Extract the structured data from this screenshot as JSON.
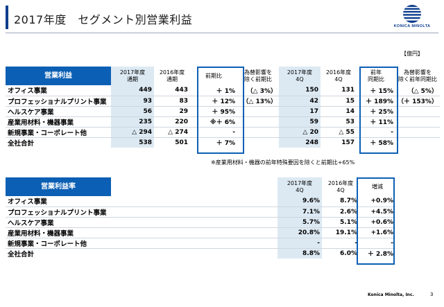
{
  "header": {
    "title": "2017年度　セグメント別営業利益",
    "logo_text": "KONICA MINOLTA",
    "brand_color": "#0b3c8c",
    "accent_color": "#0b5fb4"
  },
  "unit_label": "【億円】",
  "profit_table": {
    "title": "営業利益",
    "headers": {
      "y17": "2017年度\n通期",
      "y16": "2016年度\n通期",
      "yoy": "前期比",
      "fx": "為替影響を\n除く前期比",
      "q17": "2017年度\n4Q",
      "q16": "2016年度\n4Q",
      "qyoy": "前年\n同期比",
      "qfx": "為替影響を\n除く前年同期比"
    },
    "rows": [
      {
        "label": "オフィス事業",
        "y17": "449",
        "y16": "443",
        "yoy": "＋ 1%",
        "fx": "（△ 3%）",
        "q17": "150",
        "q16": "131",
        "qyoy": "＋ 15%",
        "qfx": "（△ 5%）"
      },
      {
        "label": "プロフェッショナルプリント事業",
        "y17": "93",
        "y16": "83",
        "yoy": "＋ 12%",
        "fx": "（△ 13%）",
        "q17": "42",
        "q16": "15",
        "qyoy": "＋ 189%",
        "qfx": "（＋ 153%）"
      },
      {
        "label": "ヘルスケア事業",
        "y17": "56",
        "y16": "29",
        "yoy": "＋ 95%",
        "fx": "",
        "q17": "17",
        "q16": "14",
        "qyoy": "＋ 25%",
        "qfx": ""
      },
      {
        "label": "産業用材料・機器事業",
        "y17": "235",
        "y16": "220",
        "yoy": "※＋ 6%",
        "fx": "",
        "q17": "59",
        "q16": "53",
        "qyoy": "＋ 11%",
        "qfx": ""
      },
      {
        "label": "新規事業・コーポレート他",
        "y17": "△ 294",
        "y16": "△ 274",
        "yoy": "-",
        "fx": "",
        "q17": "△ 20",
        "q16": "△ 55",
        "qyoy": "-",
        "qfx": ""
      }
    ],
    "total": {
      "label": "全社合計",
      "y17": "538",
      "y16": "501",
      "yoy": "＋ 7%",
      "fx": "",
      "q17": "248",
      "q16": "157",
      "qyoy": "＋ 58%",
      "qfx": ""
    }
  },
  "footnote": "※産業用材料・機器の前年特殊要因を除くと前期比+65%",
  "margin_table": {
    "title": "営業利益率",
    "headers": {
      "q17": "2017年度\n4Q",
      "q16": "2016年度\n4Q",
      "change": "増減"
    },
    "rows": [
      {
        "label": "オフィス事業",
        "q17": "9.6%",
        "q16": "8.7%",
        "change": "+0.9%"
      },
      {
        "label": "プロフェッショナルプリント事業",
        "q17": "7.1%",
        "q16": "2.6%",
        "change": "+4.5%"
      },
      {
        "label": "ヘルスケア事業",
        "q17": "5.7%",
        "q16": "5.1%",
        "change": "+0.6%"
      },
      {
        "label": "産業用材料・機器事業",
        "q17": "20.8%",
        "q16": "19.1%",
        "change": "+1.6%"
      },
      {
        "label": "新規事業・コーポレート他",
        "q17": "-",
        "q16": "-",
        "change": "-"
      }
    ],
    "total": {
      "label": "全社合計",
      "q17": "8.8%",
      "q16": "6.0%",
      "change": "＋ 2.8%"
    }
  },
  "footer": {
    "company": "Konica Minolta, Inc.",
    "page": "3"
  }
}
